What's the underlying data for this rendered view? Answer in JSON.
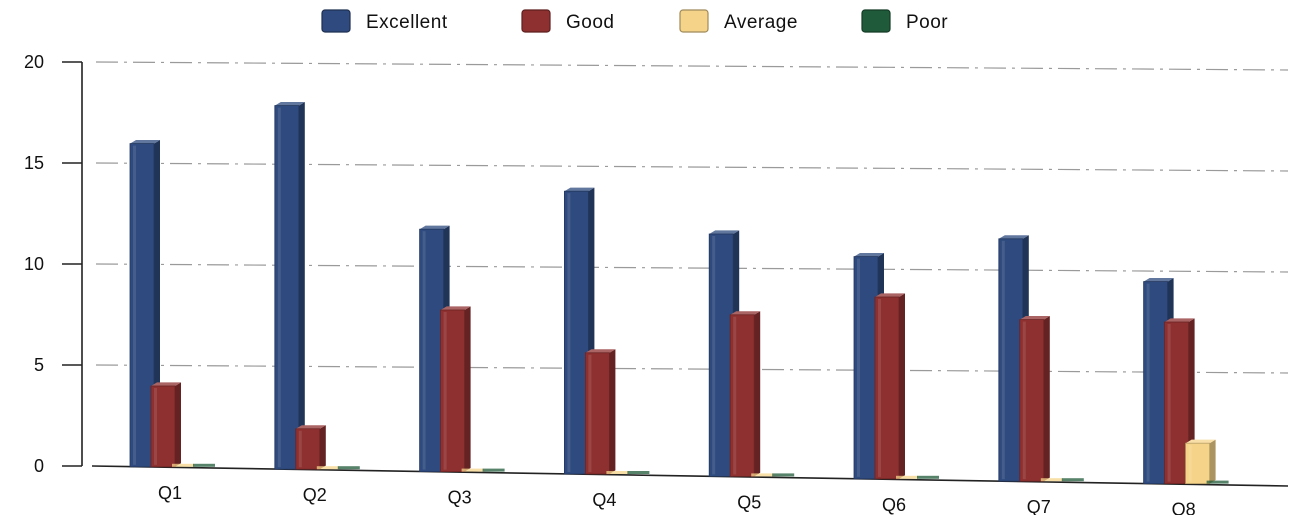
{
  "chart_data": {
    "type": "bar",
    "title": "",
    "xlabel": "",
    "ylabel": "",
    "categories": [
      "Q1",
      "Q2",
      "Q3",
      "Q4",
      "Q5",
      "Q6",
      "Q7",
      "Q8"
    ],
    "ylim": [
      0,
      20
    ],
    "yticks": [
      "0",
      "5",
      "10",
      "15",
      "20"
    ],
    "grid": true,
    "legend_position": "top",
    "style": "3d-columns",
    "series": [
      {
        "name": "Excellent",
        "color": "#2e4a7e",
        "values": [
          16,
          18,
          12,
          14,
          12,
          11,
          12,
          10
        ]
      },
      {
        "name": "Good",
        "color": "#8f3030",
        "values": [
          4,
          2,
          8,
          6,
          8,
          9,
          8,
          8
        ]
      },
      {
        "name": "Average",
        "color": "#f5d48a",
        "values": [
          0,
          0,
          0,
          0,
          0,
          0,
          0,
          2
        ]
      },
      {
        "name": "Poor",
        "color": "#1f5a3a",
        "values": [
          0,
          0,
          0,
          0,
          0,
          0,
          0,
          0
        ]
      }
    ]
  }
}
